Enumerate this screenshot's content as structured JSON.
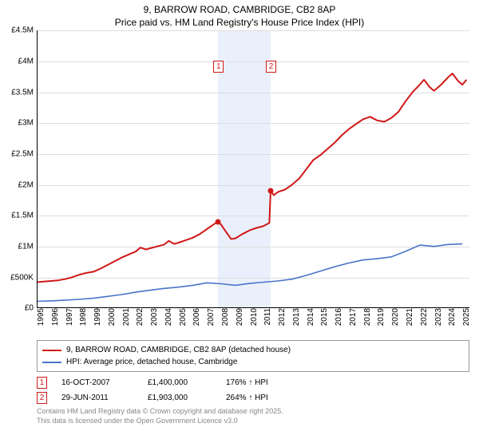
{
  "title": {
    "line1": "9, BARROW ROAD, CAMBRIDGE, CB2 8AP",
    "line2": "Price paid vs. HM Land Registry's House Price Index (HPI)"
  },
  "chart": {
    "type": "line",
    "background_color": "#ffffff",
    "grid_color": "#dddddd",
    "highlight_band_color": "#eaf0fb",
    "highlight_band": {
      "x_start": 2007.79,
      "x_end": 2011.49
    },
    "xlim": [
      1995,
      2025.5
    ],
    "ylim": [
      0,
      4500000
    ],
    "ytick_step": 500000,
    "ytick_labels": [
      "£0",
      "£500K",
      "£1M",
      "£1.5M",
      "£2M",
      "£2.5M",
      "£3M",
      "£3.5M",
      "£4M",
      "£4.5M"
    ],
    "xtick_step": 1,
    "xtick_labels": [
      "1995",
      "1996",
      "1997",
      "1998",
      "1999",
      "2000",
      "2001",
      "2002",
      "2003",
      "2004",
      "2005",
      "2006",
      "2007",
      "2008",
      "2009",
      "2010",
      "2011",
      "2012",
      "2013",
      "2014",
      "2015",
      "2016",
      "2017",
      "2018",
      "2019",
      "2020",
      "2021",
      "2022",
      "2023",
      "2024",
      "2025"
    ],
    "series": [
      {
        "name": "9, BARROW ROAD, CAMBRIDGE, CB2 8AP (detached house)",
        "color": "#d01818",
        "line_width": 2,
        "points": [
          [
            1995,
            420000
          ],
          [
            1995.5,
            430000
          ],
          [
            1996,
            440000
          ],
          [
            1996.5,
            450000
          ],
          [
            1997,
            470000
          ],
          [
            1997.5,
            500000
          ],
          [
            1998,
            540000
          ],
          [
            1998.5,
            570000
          ],
          [
            1999,
            590000
          ],
          [
            1999.5,
            640000
          ],
          [
            2000,
            700000
          ],
          [
            2000.5,
            760000
          ],
          [
            2001,
            820000
          ],
          [
            2001.5,
            870000
          ],
          [
            2002,
            920000
          ],
          [
            2002.3,
            980000
          ],
          [
            2002.7,
            950000
          ],
          [
            2003,
            970000
          ],
          [
            2003.5,
            1000000
          ],
          [
            2004,
            1030000
          ],
          [
            2004.3,
            1090000
          ],
          [
            2004.7,
            1040000
          ],
          [
            2005,
            1060000
          ],
          [
            2005.5,
            1100000
          ],
          [
            2006,
            1140000
          ],
          [
            2006.5,
            1200000
          ],
          [
            2007,
            1280000
          ],
          [
            2007.5,
            1360000
          ],
          [
            2007.79,
            1400000
          ],
          [
            2008,
            1350000
          ],
          [
            2008.3,
            1250000
          ],
          [
            2008.7,
            1120000
          ],
          [
            2009,
            1130000
          ],
          [
            2009.5,
            1200000
          ],
          [
            2010,
            1260000
          ],
          [
            2010.5,
            1300000
          ],
          [
            2011,
            1330000
          ],
          [
            2011.4,
            1380000
          ],
          [
            2011.49,
            1903000
          ],
          [
            2011.7,
            1830000
          ],
          [
            2012,
            1880000
          ],
          [
            2012.5,
            1920000
          ],
          [
            2013,
            2000000
          ],
          [
            2013.5,
            2100000
          ],
          [
            2014,
            2250000
          ],
          [
            2014.5,
            2400000
          ],
          [
            2015,
            2480000
          ],
          [
            2015.5,
            2580000
          ],
          [
            2016,
            2680000
          ],
          [
            2016.5,
            2800000
          ],
          [
            2017,
            2900000
          ],
          [
            2017.5,
            2980000
          ],
          [
            2018,
            3060000
          ],
          [
            2018.5,
            3100000
          ],
          [
            2019,
            3040000
          ],
          [
            2019.5,
            3020000
          ],
          [
            2020,
            3080000
          ],
          [
            2020.5,
            3180000
          ],
          [
            2021,
            3350000
          ],
          [
            2021.5,
            3500000
          ],
          [
            2022,
            3620000
          ],
          [
            2022.3,
            3700000
          ],
          [
            2022.7,
            3580000
          ],
          [
            2023,
            3520000
          ],
          [
            2023.5,
            3620000
          ],
          [
            2024,
            3740000
          ],
          [
            2024.3,
            3800000
          ],
          [
            2024.7,
            3680000
          ],
          [
            2025,
            3620000
          ],
          [
            2025.3,
            3700000
          ]
        ],
        "markers": [
          {
            "x": 2007.79,
            "y": 1400000,
            "color": "#d01818"
          },
          {
            "x": 2011.49,
            "y": 1903000,
            "color": "#d01818"
          }
        ]
      },
      {
        "name": "HPI: Average price, detached house, Cambridge",
        "color": "#4a74c9",
        "line_width": 1.6,
        "points": [
          [
            1995,
            110000
          ],
          [
            1996,
            118000
          ],
          [
            1997,
            128000
          ],
          [
            1998,
            142000
          ],
          [
            1999,
            160000
          ],
          [
            2000,
            190000
          ],
          [
            2001,
            220000
          ],
          [
            2002,
            260000
          ],
          [
            2003,
            290000
          ],
          [
            2004,
            320000
          ],
          [
            2005,
            340000
          ],
          [
            2006,
            370000
          ],
          [
            2007,
            410000
          ],
          [
            2008,
            395000
          ],
          [
            2009,
            370000
          ],
          [
            2010,
            400000
          ],
          [
            2011,
            420000
          ],
          [
            2012,
            440000
          ],
          [
            2013,
            470000
          ],
          [
            2014,
            530000
          ],
          [
            2015,
            600000
          ],
          [
            2016,
            670000
          ],
          [
            2017,
            730000
          ],
          [
            2018,
            780000
          ],
          [
            2019,
            800000
          ],
          [
            2020,
            830000
          ],
          [
            2021,
            920000
          ],
          [
            2022,
            1020000
          ],
          [
            2023,
            1000000
          ],
          [
            2024,
            1030000
          ],
          [
            2025,
            1040000
          ]
        ]
      }
    ],
    "marker_labels": [
      {
        "n": "1",
        "x": 2007.79,
        "border_color": "#d01818",
        "text_color": "#d01818"
      },
      {
        "n": "2",
        "x": 2011.49,
        "border_color": "#d01818",
        "text_color": "#d01818"
      }
    ],
    "axis_fontsize": 10,
    "title_fontsize": 12
  },
  "legend": {
    "items": [
      {
        "label": "9, BARROW ROAD, CAMBRIDGE, CB2 8AP (detached house)",
        "color": "#d01818"
      },
      {
        "label": "HPI: Average price, detached house, Cambridge",
        "color": "#4a74c9"
      }
    ]
  },
  "transactions": [
    {
      "n": "1",
      "date": "16-OCT-2007",
      "price": "£1,400,000",
      "pct": "176% ↑ HPI",
      "color": "#d01818"
    },
    {
      "n": "2",
      "date": "29-JUN-2011",
      "price": "£1,903,000",
      "pct": "264% ↑ HPI",
      "color": "#d01818"
    }
  ],
  "footer": {
    "line1": "Contains HM Land Registry data © Crown copyright and database right 2025.",
    "line2": "This data is licensed under the Open Government Licence v3.0"
  }
}
